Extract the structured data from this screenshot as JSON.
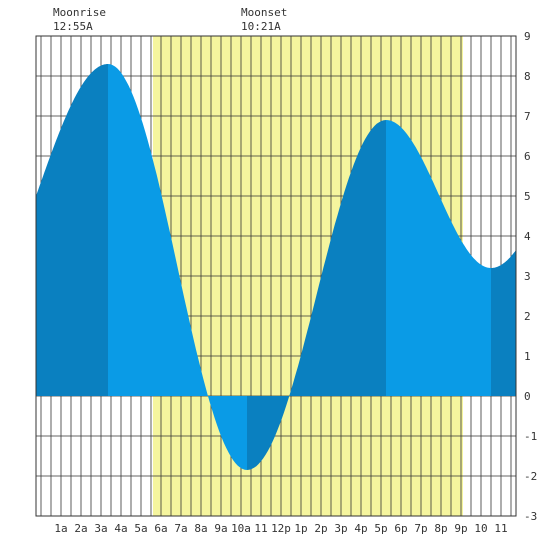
{
  "chart_data": {
    "type": "area",
    "title": "",
    "xlabel": "",
    "ylabel": "",
    "x_unit": "hour of day",
    "xlim": [
      -0.25,
      23.75
    ],
    "ylim": [
      -3,
      9
    ],
    "y_ticks": [
      -3,
      -2,
      -1,
      0,
      1,
      2,
      3,
      4,
      5,
      6,
      7,
      8,
      9
    ],
    "x_ticks": [
      {
        "x": 1,
        "label": "1a"
      },
      {
        "x": 2,
        "label": "2a"
      },
      {
        "x": 3,
        "label": "3a"
      },
      {
        "x": 4,
        "label": "4a"
      },
      {
        "x": 5,
        "label": "5a"
      },
      {
        "x": 6,
        "label": "6a"
      },
      {
        "x": 7,
        "label": "7a"
      },
      {
        "x": 8,
        "label": "8a"
      },
      {
        "x": 9,
        "label": "9a"
      },
      {
        "x": 10,
        "label": "10a"
      },
      {
        "x": 11,
        "label": "11"
      },
      {
        "x": 12,
        "label": "12p"
      },
      {
        "x": 13,
        "label": "1p"
      },
      {
        "x": 14,
        "label": "2p"
      },
      {
        "x": 15,
        "label": "3p"
      },
      {
        "x": 16,
        "label": "4p"
      },
      {
        "x": 17,
        "label": "5p"
      },
      {
        "x": 18,
        "label": "6p"
      },
      {
        "x": 19,
        "label": "7p"
      },
      {
        "x": 20,
        "label": "8p"
      },
      {
        "x": 21,
        "label": "9p"
      },
      {
        "x": 22,
        "label": "10"
      },
      {
        "x": 23,
        "label": "11"
      }
    ],
    "tide_extremes": [
      {
        "time": 3.35,
        "height": 8.3,
        "type": "high"
      },
      {
        "time": 10.3,
        "height": -1.85,
        "type": "low"
      },
      {
        "time": 17.25,
        "height": 6.9,
        "type": "high"
      },
      {
        "time": 22.5,
        "height": 3.2,
        "type": "low"
      }
    ],
    "series_start": {
      "time": -0.25,
      "height": 5.0
    },
    "series_end": {
      "time": 23.75,
      "height": 3.65
    },
    "daylight": {
      "start": 5.6,
      "end": 21.1
    },
    "moonrise": {
      "label": "Moonrise",
      "time_text": "12:55A",
      "x": 0.92
    },
    "moonset": {
      "label": "Moonset",
      "time_text": "10:21A",
      "x": 10.35
    },
    "grid": true,
    "colors": {
      "day": "#f5f59e",
      "grid": "#333333",
      "tide_light": "#0a9be6",
      "tide_dark": "#0a80c0",
      "frame": "#333333",
      "text": "#333333"
    }
  }
}
